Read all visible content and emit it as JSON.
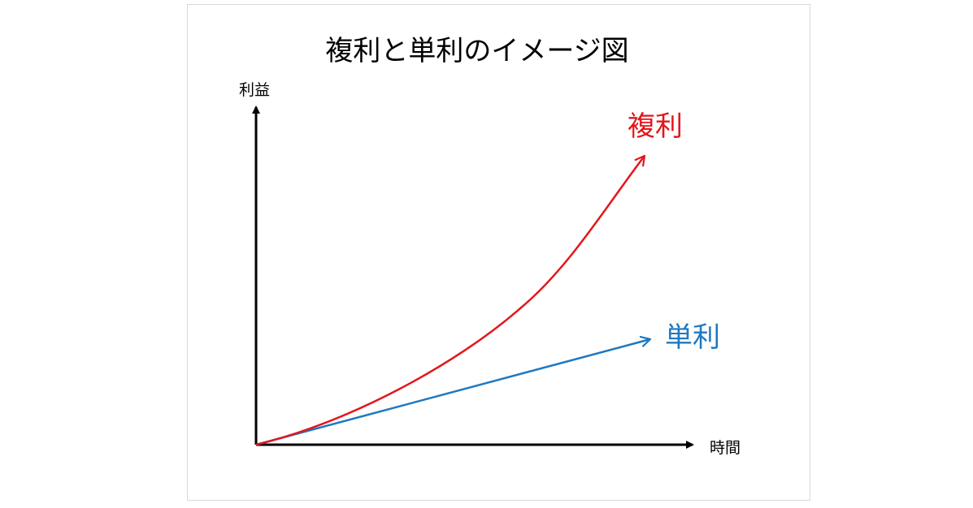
{
  "title": "複利と単利のイメージ図",
  "y_axis_label": "利益",
  "x_axis_label": "時間",
  "series": {
    "compound": {
      "label": "複利",
      "color": "#e3161b"
    },
    "simple": {
      "label": "単利",
      "color": "#1f78c1"
    }
  },
  "colors": {
    "axis": "#000000",
    "text": "#000000"
  }
}
